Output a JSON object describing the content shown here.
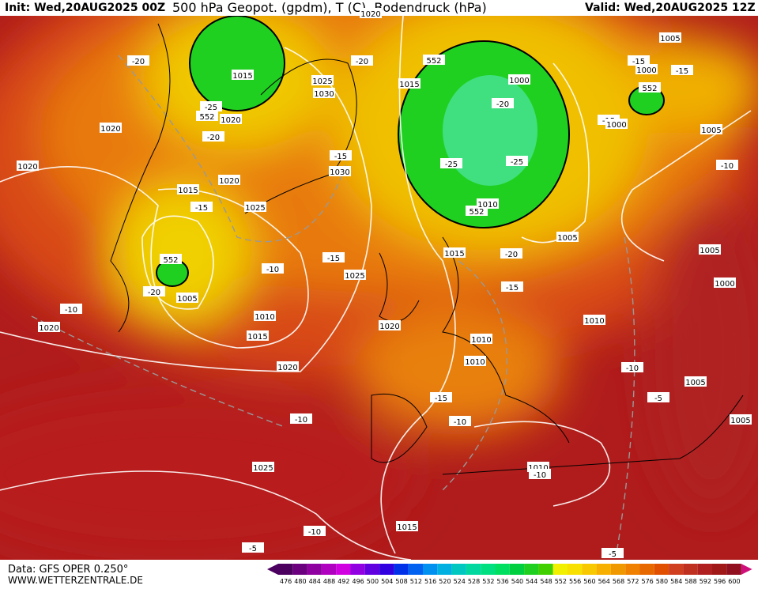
{
  "header": {
    "init": "Init: Wed,20AUG2025 00Z",
    "title": "500 hPa Geopot. (gpdm), T (C), Bodendruck (hPa)",
    "valid": "Valid: Wed,20AUG2025 12Z"
  },
  "footer": {
    "data": "Data: GFS OPER 0.250°",
    "site": "WWW.WETTERZENTRALE.DE"
  },
  "colorbar": {
    "ticks": [
      476,
      480,
      484,
      488,
      492,
      496,
      500,
      504,
      508,
      512,
      516,
      520,
      524,
      528,
      532,
      536,
      540,
      544,
      548,
      552,
      556,
      560,
      564,
      568,
      572,
      576,
      580,
      584,
      588,
      592,
      596,
      600
    ],
    "colors": [
      "#4b0060",
      "#6a007e",
      "#8e00a0",
      "#b000c0",
      "#d000e0",
      "#9000e0",
      "#6000e0",
      "#3000e0",
      "#0030e8",
      "#0060f0",
      "#0090f0",
      "#00b0e0",
      "#00c8c0",
      "#00d8a0",
      "#00e080",
      "#00e060",
      "#00d040",
      "#20d020",
      "#40d000",
      "#f0f000",
      "#f8e000",
      "#f8c800",
      "#f8b000",
      "#f09800",
      "#f08000",
      "#e86800",
      "#e05000",
      "#d04020",
      "#c03020",
      "#b02020",
      "#a01818",
      "#901020"
    ]
  },
  "contour_labels": [
    "-20",
    "1015",
    "-25",
    "552",
    "1020",
    "1020",
    "-20",
    "1020",
    "1015",
    "1020",
    "-15",
    "1025",
    "552",
    "-20",
    "1005",
    "-10",
    "-10",
    "1020",
    "1010",
    "1015",
    "1020",
    "-20",
    "1025",
    "1030",
    "-15",
    "1030",
    "-15",
    "1025",
    "1020",
    "552",
    "1015",
    "1000",
    "-20",
    "-25",
    "-25",
    "552",
    "1010",
    "1005",
    "1015",
    "-20",
    "-15",
    "1020",
    "1010",
    "1010",
    "1010",
    "-10",
    "1005",
    "-5",
    "-15",
    "-10",
    "-10",
    "1025",
    "1010",
    "-10",
    "1015",
    "-10",
    "-5",
    "-5",
    "1005",
    "1005",
    "-15",
    "1000",
    "-15",
    "552",
    "-15",
    "1000",
    "1005",
    "-10",
    "1005",
    "1000"
  ]
}
